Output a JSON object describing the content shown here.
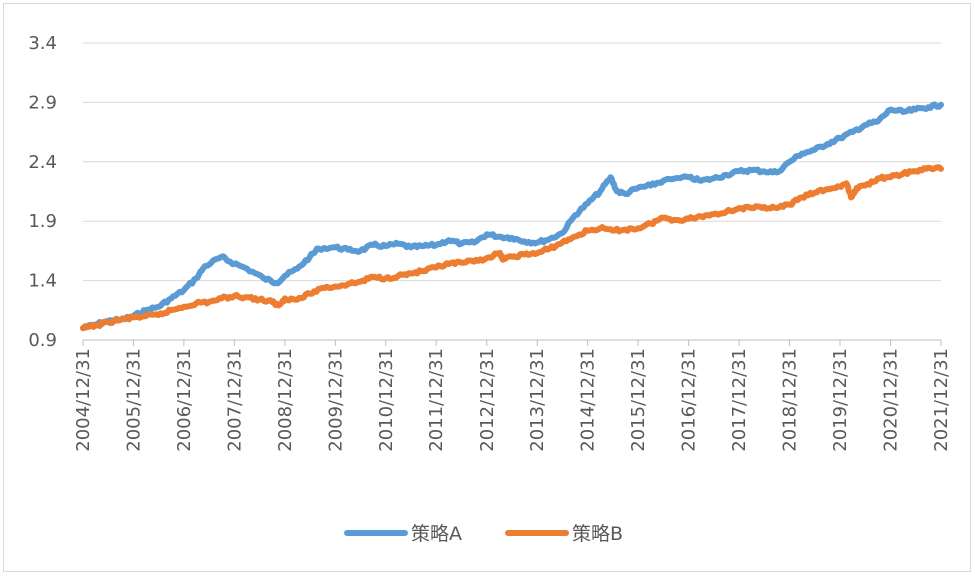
{
  "chart_data": {
    "type": "line",
    "title": "",
    "xlabel": "",
    "ylabel": "",
    "ylim": [
      0.9,
      3.4
    ],
    "yticks": [
      "0.9",
      "1.4",
      "1.9",
      "2.4",
      "2.9",
      "3.4"
    ],
    "xticks": [
      "2004/12/31",
      "2005/12/31",
      "2006/12/31",
      "2007/12/31",
      "2008/12/31",
      "2009/12/31",
      "2010/12/31",
      "2011/12/31",
      "2012/12/31",
      "2013/12/31",
      "2014/12/31",
      "2015/12/31",
      "2016/12/31",
      "2017/12/31",
      "2018/12/31",
      "2019/12/31",
      "2020/12/31",
      "2021/12/31"
    ],
    "grid": true,
    "legend_position": "bottom",
    "series": [
      {
        "name": "策略A",
        "color": "#5B9BD5",
        "points": [
          [
            "2004/12/31",
            1.0
          ],
          [
            "2005/3/31",
            1.03
          ],
          [
            "2005/6/30",
            1.06
          ],
          [
            "2005/9/30",
            1.07
          ],
          [
            "2005/12/31",
            1.1
          ],
          [
            "2006/3/31",
            1.15
          ],
          [
            "2006/6/30",
            1.18
          ],
          [
            "2006/9/30",
            1.25
          ],
          [
            "2006/12/31",
            1.32
          ],
          [
            "2007/3/31",
            1.42
          ],
          [
            "2007/5/31",
            1.52
          ],
          [
            "2007/9/30",
            1.6
          ],
          [
            "2007/11/30",
            1.56
          ],
          [
            "2008/3/31",
            1.5
          ],
          [
            "2008/7/31",
            1.42
          ],
          [
            "2008/10/31",
            1.38
          ],
          [
            "2008/12/31",
            1.44
          ],
          [
            "2009/3/31",
            1.5
          ],
          [
            "2009/6/30",
            1.6
          ],
          [
            "2009/8/31",
            1.67
          ],
          [
            "2009/12/31",
            1.68
          ],
          [
            "2010/3/31",
            1.66
          ],
          [
            "2010/6/30",
            1.65
          ],
          [
            "2010/9/30",
            1.7
          ],
          [
            "2010/12/31",
            1.69
          ],
          [
            "2011/3/31",
            1.71
          ],
          [
            "2011/6/30",
            1.68
          ],
          [
            "2011/9/30",
            1.69
          ],
          [
            "2011/12/31",
            1.7
          ],
          [
            "2012/3/31",
            1.74
          ],
          [
            "2012/6/30",
            1.71
          ],
          [
            "2012/9/30",
            1.72
          ],
          [
            "2012/12/31",
            1.79
          ],
          [
            "2013/3/31",
            1.77
          ],
          [
            "2013/6/30",
            1.76
          ],
          [
            "2013/9/30",
            1.73
          ],
          [
            "2013/12/31",
            1.72
          ],
          [
            "2014/3/31",
            1.75
          ],
          [
            "2014/6/30",
            1.8
          ],
          [
            "2014/9/30",
            1.95
          ],
          [
            "2014/12/31",
            2.05
          ],
          [
            "2015/3/31",
            2.15
          ],
          [
            "2015/6/15",
            2.27
          ],
          [
            "2015/7/31",
            2.15
          ],
          [
            "2015/9/30",
            2.13
          ],
          [
            "2015/12/31",
            2.18
          ],
          [
            "2016/3/31",
            2.2
          ],
          [
            "2016/6/30",
            2.24
          ],
          [
            "2016/12/31",
            2.27
          ],
          [
            "2017/3/31",
            2.24
          ],
          [
            "2017/6/30",
            2.26
          ],
          [
            "2017/9/30",
            2.29
          ],
          [
            "2017/12/31",
            2.32
          ],
          [
            "2018/3/31",
            2.33
          ],
          [
            "2018/6/30",
            2.32
          ],
          [
            "2018/9/30",
            2.31
          ],
          [
            "2018/12/31",
            2.4
          ],
          [
            "2019/3/31",
            2.47
          ],
          [
            "2019/6/30",
            2.5
          ],
          [
            "2019/9/30",
            2.55
          ],
          [
            "2019/12/31",
            2.6
          ],
          [
            "2020/3/31",
            2.65
          ],
          [
            "2020/6/30",
            2.71
          ],
          [
            "2020/9/30",
            2.74
          ],
          [
            "2020/12/31",
            2.84
          ],
          [
            "2021/3/31",
            2.82
          ],
          [
            "2021/6/30",
            2.84
          ],
          [
            "2021/9/30",
            2.86
          ],
          [
            "2021/12/31",
            2.88
          ]
        ]
      },
      {
        "name": "策略B",
        "color": "#ED7D31",
        "points": [
          [
            "2004/12/31",
            1.0
          ],
          [
            "2005/3/31",
            1.02
          ],
          [
            "2005/6/30",
            1.05
          ],
          [
            "2005/9/30",
            1.07
          ],
          [
            "2005/12/31",
            1.09
          ],
          [
            "2006/3/31",
            1.1
          ],
          [
            "2006/6/30",
            1.11
          ],
          [
            "2006/9/30",
            1.15
          ],
          [
            "2006/12/31",
            1.18
          ],
          [
            "2007/3/31",
            1.21
          ],
          [
            "2007/6/30",
            1.22
          ],
          [
            "2007/9/30",
            1.25
          ],
          [
            "2007/12/31",
            1.27
          ],
          [
            "2008/3/31",
            1.26
          ],
          [
            "2008/6/30",
            1.24
          ],
          [
            "2008/9/30",
            1.22
          ],
          [
            "2008/11/15",
            1.19
          ],
          [
            "2008/12/31",
            1.25
          ],
          [
            "2009/3/31",
            1.24
          ],
          [
            "2009/6/30",
            1.29
          ],
          [
            "2009/9/30",
            1.34
          ],
          [
            "2009/12/31",
            1.35
          ],
          [
            "2010/3/31",
            1.37
          ],
          [
            "2010/6/30",
            1.39
          ],
          [
            "2010/9/30",
            1.43
          ],
          [
            "2010/12/31",
            1.42
          ],
          [
            "2011/3/31",
            1.44
          ],
          [
            "2011/6/30",
            1.46
          ],
          [
            "2011/9/30",
            1.48
          ],
          [
            "2011/12/31",
            1.51
          ],
          [
            "2012/3/31",
            1.54
          ],
          [
            "2012/6/30",
            1.55
          ],
          [
            "2012/9/30",
            1.56
          ],
          [
            "2012/12/31",
            1.59
          ],
          [
            "2013/3/31",
            1.63
          ],
          [
            "2013/4/30",
            1.58
          ],
          [
            "2013/6/30",
            1.6
          ],
          [
            "2013/9/30",
            1.62
          ],
          [
            "2013/12/31",
            1.63
          ],
          [
            "2014/3/31",
            1.67
          ],
          [
            "2014/6/30",
            1.72
          ],
          [
            "2014/9/30",
            1.77
          ],
          [
            "2014/12/31",
            1.82
          ],
          [
            "2015/3/31",
            1.84
          ],
          [
            "2015/6/30",
            1.82
          ],
          [
            "2015/9/30",
            1.83
          ],
          [
            "2015/12/31",
            1.84
          ],
          [
            "2016/3/31",
            1.88
          ],
          [
            "2016/6/30",
            1.93
          ],
          [
            "2016/9/30",
            1.91
          ],
          [
            "2016/12/31",
            1.92
          ],
          [
            "2017/3/31",
            1.94
          ],
          [
            "2017/6/30",
            1.96
          ],
          [
            "2017/9/30",
            1.98
          ],
          [
            "2017/12/31",
            2.01
          ],
          [
            "2018/3/31",
            2.01
          ],
          [
            "2018/6/30",
            2.02
          ],
          [
            "2018/9/30",
            2.01
          ],
          [
            "2018/12/31",
            2.04
          ],
          [
            "2019/3/31",
            2.1
          ],
          [
            "2019/6/30",
            2.14
          ],
          [
            "2019/9/30",
            2.17
          ],
          [
            "2019/12/31",
            2.19
          ],
          [
            "2020/2/15",
            2.22
          ],
          [
            "2020/3/20",
            2.1
          ],
          [
            "2020/4/30",
            2.18
          ],
          [
            "2020/6/30",
            2.2
          ],
          [
            "2020/9/30",
            2.26
          ],
          [
            "2020/12/31",
            2.27
          ],
          [
            "2021/3/31",
            2.3
          ],
          [
            "2021/6/30",
            2.32
          ],
          [
            "2021/9/30",
            2.35
          ],
          [
            "2021/12/31",
            2.34
          ]
        ]
      }
    ]
  }
}
